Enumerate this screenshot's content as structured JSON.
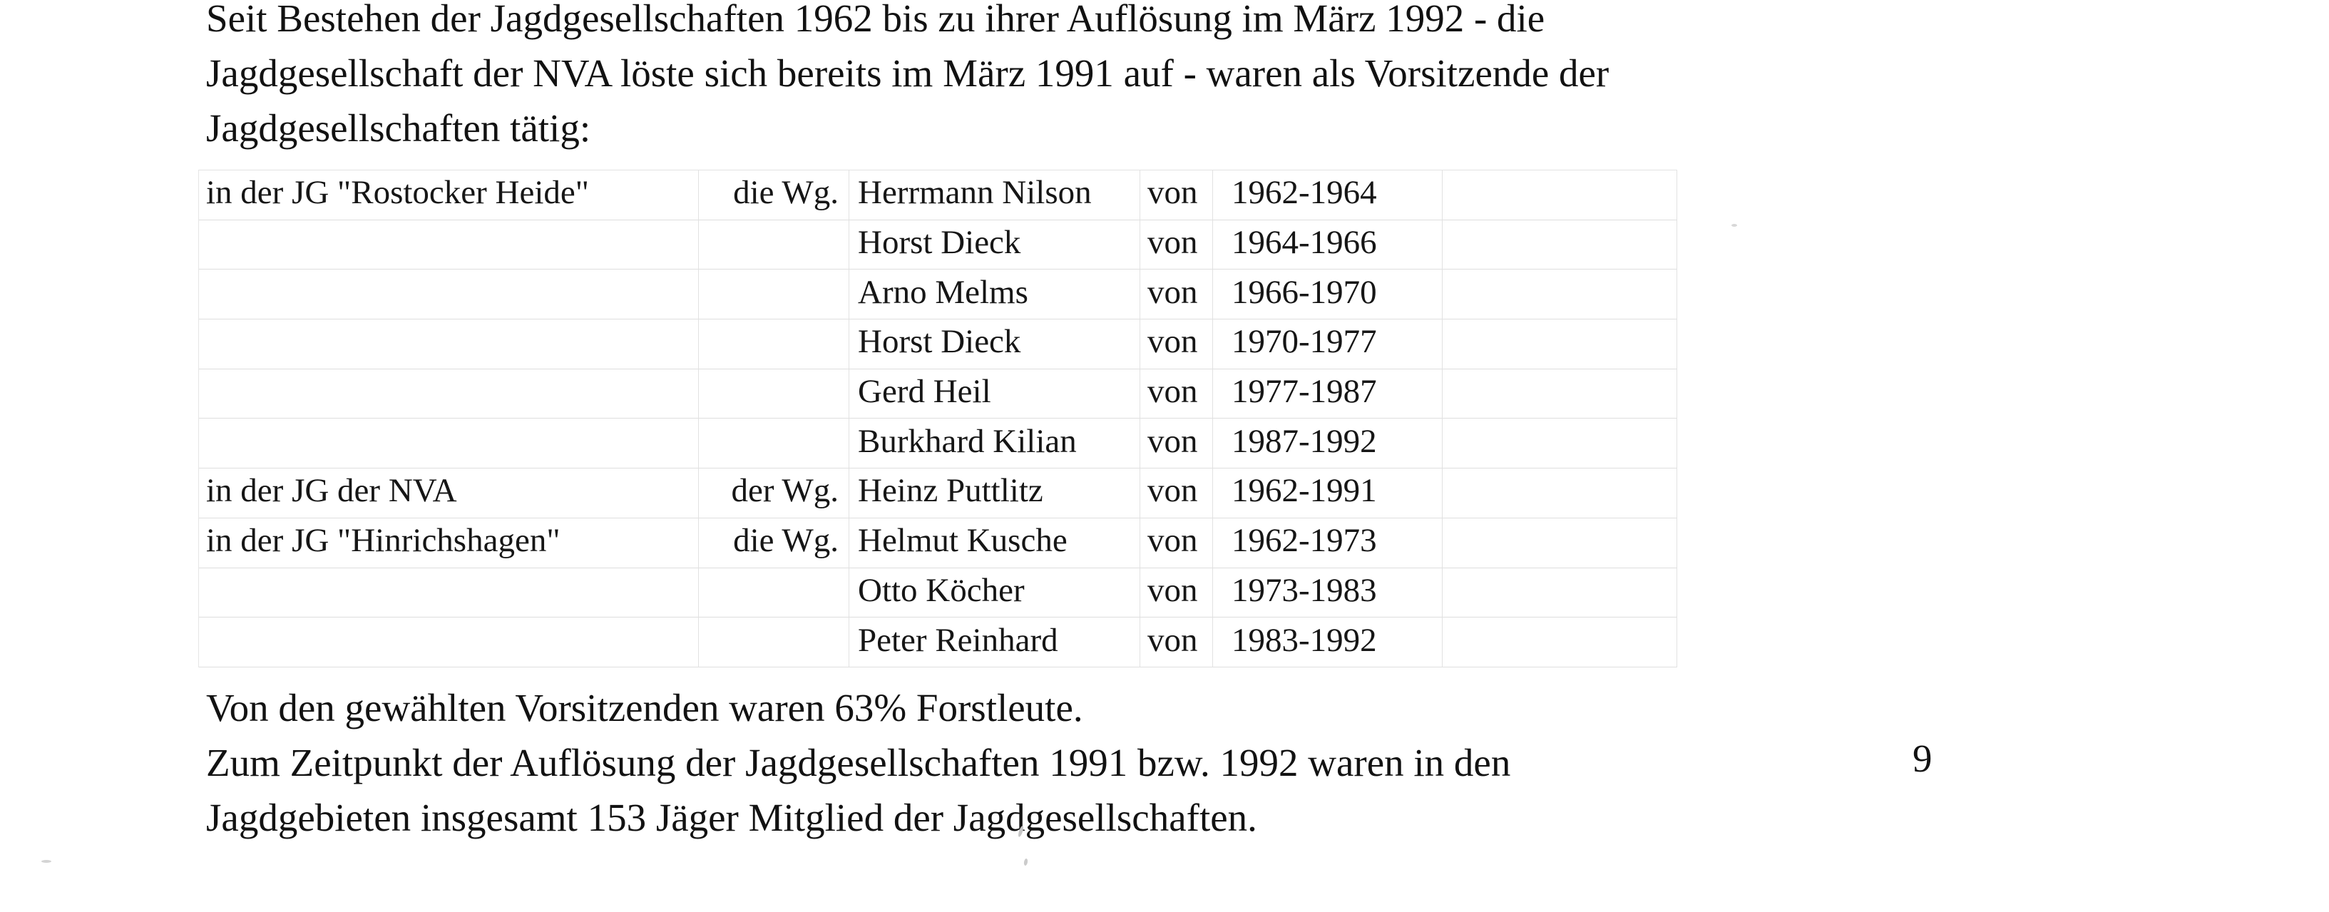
{
  "document": {
    "intro_lines": [
      "Seit Bestehen der Jagdgesellschaften 1962 bis zu ihrer Auflösung im März 1992 - die",
      "Jagdgesellschaft der NVA löste sich bereits im März 1991 auf - waren als Vorsitzende der",
      "Jagdgesellschaften tätig:"
    ],
    "table": {
      "rows": [
        {
          "group": "in der JG \"Rostocker Heide\"",
          "wg": "die Wg.",
          "name": "Herrmann Nilson",
          "von": "von",
          "years": "1962-1964"
        },
        {
          "group": "",
          "wg": "",
          "name": "Horst Dieck",
          "von": "von",
          "years": "1964-1966"
        },
        {
          "group": "",
          "wg": "",
          "name": "Arno Melms",
          "von": "von",
          "years": "1966-1970"
        },
        {
          "group": "",
          "wg": "",
          "name": "Horst Dieck",
          "von": "von",
          "years": "1970-1977"
        },
        {
          "group": "",
          "wg": "",
          "name": "Gerd Heil",
          "von": "von",
          "years": "1977-1987"
        },
        {
          "group": "",
          "wg": "",
          "name": "Burkhard Kilian",
          "von": "von",
          "years": "1987-1992"
        },
        {
          "group": "in der JG der NVA",
          "wg": "der Wg.",
          "name": "Heinz Puttlitz",
          "von": "von",
          "years": "1962-1991"
        },
        {
          "group": "in der JG \"Hinrichshagen\"",
          "wg": "die Wg.",
          "name": "Helmut Kusche",
          "von": "von",
          "years": "1962-1973"
        },
        {
          "group": "",
          "wg": "",
          "name": "Otto Köcher",
          "von": "von",
          "years": "1973-1983"
        },
        {
          "group": "",
          "wg": "",
          "name": "Peter Reinhard",
          "von": "von",
          "years": "1983-1992"
        }
      ]
    },
    "closing_lines": [
      "Von den gewählten Vorsitzenden waren 63% Forstleute.",
      "Zum Zeitpunkt der Auflösung der Jagdgesellschaften 1991 bzw. 1992 waren in den",
      "Jagdgebieten insgesamt 153 Jäger Mitglied der Jagdgesellschaften."
    ],
    "page_number": "9"
  }
}
